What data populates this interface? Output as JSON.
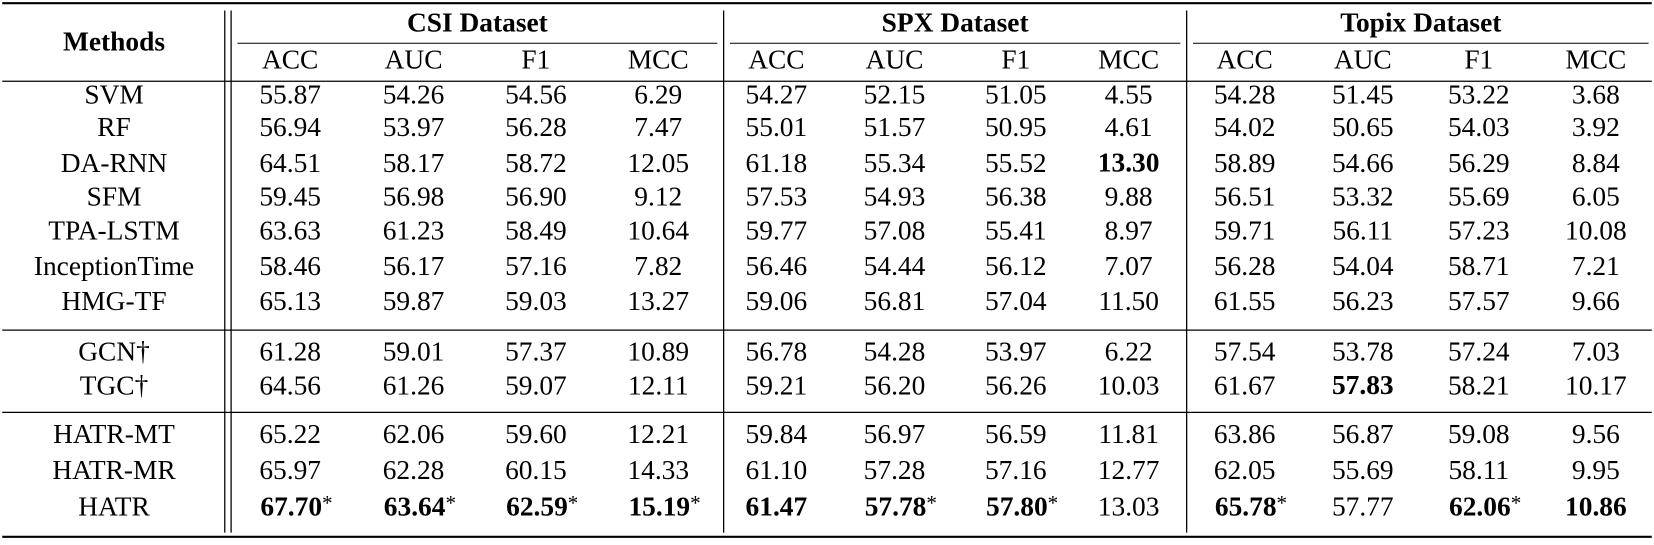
{
  "table": {
    "header": {
      "methods": "Methods",
      "groups": [
        {
          "title": "CSI Dataset",
          "metrics": [
            "ACC",
            "AUC",
            "F1",
            "MCC"
          ]
        },
        {
          "title": "SPX Dataset",
          "metrics": [
            "ACC",
            "AUC",
            "F1",
            "MCC"
          ]
        },
        {
          "title": "Topix Dataset",
          "metrics": [
            "ACC",
            "AUC",
            "F1",
            "MCC"
          ]
        }
      ]
    },
    "sections": [
      [
        {
          "method": "SVM",
          "cells": [
            "55.87",
            "54.26",
            "54.56",
            "6.29",
            "54.27",
            "52.15",
            "51.05",
            "4.55",
            "54.28",
            "51.45",
            "53.22",
            "3.68"
          ]
        },
        {
          "method": "RF",
          "cells": [
            "56.94",
            "53.97",
            "56.28",
            "7.47",
            "55.01",
            "51.57",
            "50.95",
            "4.61",
            "54.02",
            "50.65",
            "54.03",
            "3.92"
          ]
        },
        {
          "method": "DA-RNN",
          "cells": [
            "64.51",
            "58.17",
            "58.72",
            "12.05",
            "61.18",
            "55.34",
            "55.52",
            {
              "text": "13.30",
              "bold": true
            },
            "58.89",
            "54.66",
            "56.29",
            "8.84"
          ]
        },
        {
          "method": "SFM",
          "cells": [
            "59.45",
            "56.98",
            "56.90",
            "9.12",
            "57.53",
            "54.93",
            "56.38",
            "9.88",
            "56.51",
            "53.32",
            "55.69",
            "6.05"
          ]
        },
        {
          "method": "TPA-LSTM",
          "cells": [
            "63.63",
            "61.23",
            "58.49",
            "10.64",
            "59.77",
            "57.08",
            "55.41",
            "8.97",
            "59.71",
            "56.11",
            "57.23",
            "10.08"
          ]
        },
        {
          "method": "InceptionTime",
          "cells": [
            "58.46",
            "56.17",
            "57.16",
            "7.82",
            "56.46",
            "54.44",
            "56.12",
            "7.07",
            "56.28",
            "54.04",
            "58.71",
            "7.21"
          ]
        },
        {
          "method": "HMG-TF",
          "cells": [
            "65.13",
            "59.87",
            "59.03",
            "13.27",
            "59.06",
            "56.81",
            "57.04",
            "11.50",
            "61.55",
            "56.23",
            "57.57",
            "9.66"
          ]
        }
      ],
      [
        {
          "method": "GCN†",
          "cells": [
            "61.28",
            "59.01",
            "57.37",
            "10.89",
            "56.78",
            "54.28",
            "53.97",
            "6.22",
            "57.54",
            "53.78",
            "57.24",
            "7.03"
          ]
        },
        {
          "method": "TGC†",
          "cells": [
            "64.56",
            "61.26",
            "59.07",
            "12.11",
            "59.21",
            "56.20",
            "56.26",
            "10.03",
            "61.67",
            {
              "text": "57.83",
              "bold": true
            },
            "58.21",
            "10.17"
          ]
        }
      ],
      [
        {
          "method": "HATR-MT",
          "cells": [
            "65.22",
            "62.06",
            "59.60",
            "12.21",
            "59.84",
            "56.97",
            "56.59",
            "11.81",
            "63.86",
            "56.87",
            "59.08",
            "9.56"
          ]
        },
        {
          "method": "HATR-MR",
          "cells": [
            "65.97",
            "62.28",
            "60.15",
            "14.33",
            "61.10",
            "57.28",
            "57.16",
            "12.77",
            "62.05",
            "55.69",
            "58.11",
            "9.95"
          ]
        },
        {
          "method": "HATR",
          "cells": [
            {
              "text": "67.70",
              "bold": true,
              "sup": "*"
            },
            {
              "text": "63.64",
              "bold": true,
              "sup": "*"
            },
            {
              "text": "62.59",
              "bold": true,
              "sup": "*"
            },
            {
              "text": "15.19",
              "bold": true,
              "sup": "*"
            },
            {
              "text": "61.47",
              "bold": true
            },
            {
              "text": "57.78",
              "bold": true,
              "sup": "*"
            },
            {
              "text": "57.80",
              "bold": true,
              "sup": "*"
            },
            "13.03",
            {
              "text": "65.78",
              "bold": true,
              "sup": "*"
            },
            "57.77",
            {
              "text": "62.06",
              "bold": true,
              "sup": "*"
            },
            {
              "text": "10.86",
              "bold": true
            }
          ]
        }
      ]
    ]
  }
}
